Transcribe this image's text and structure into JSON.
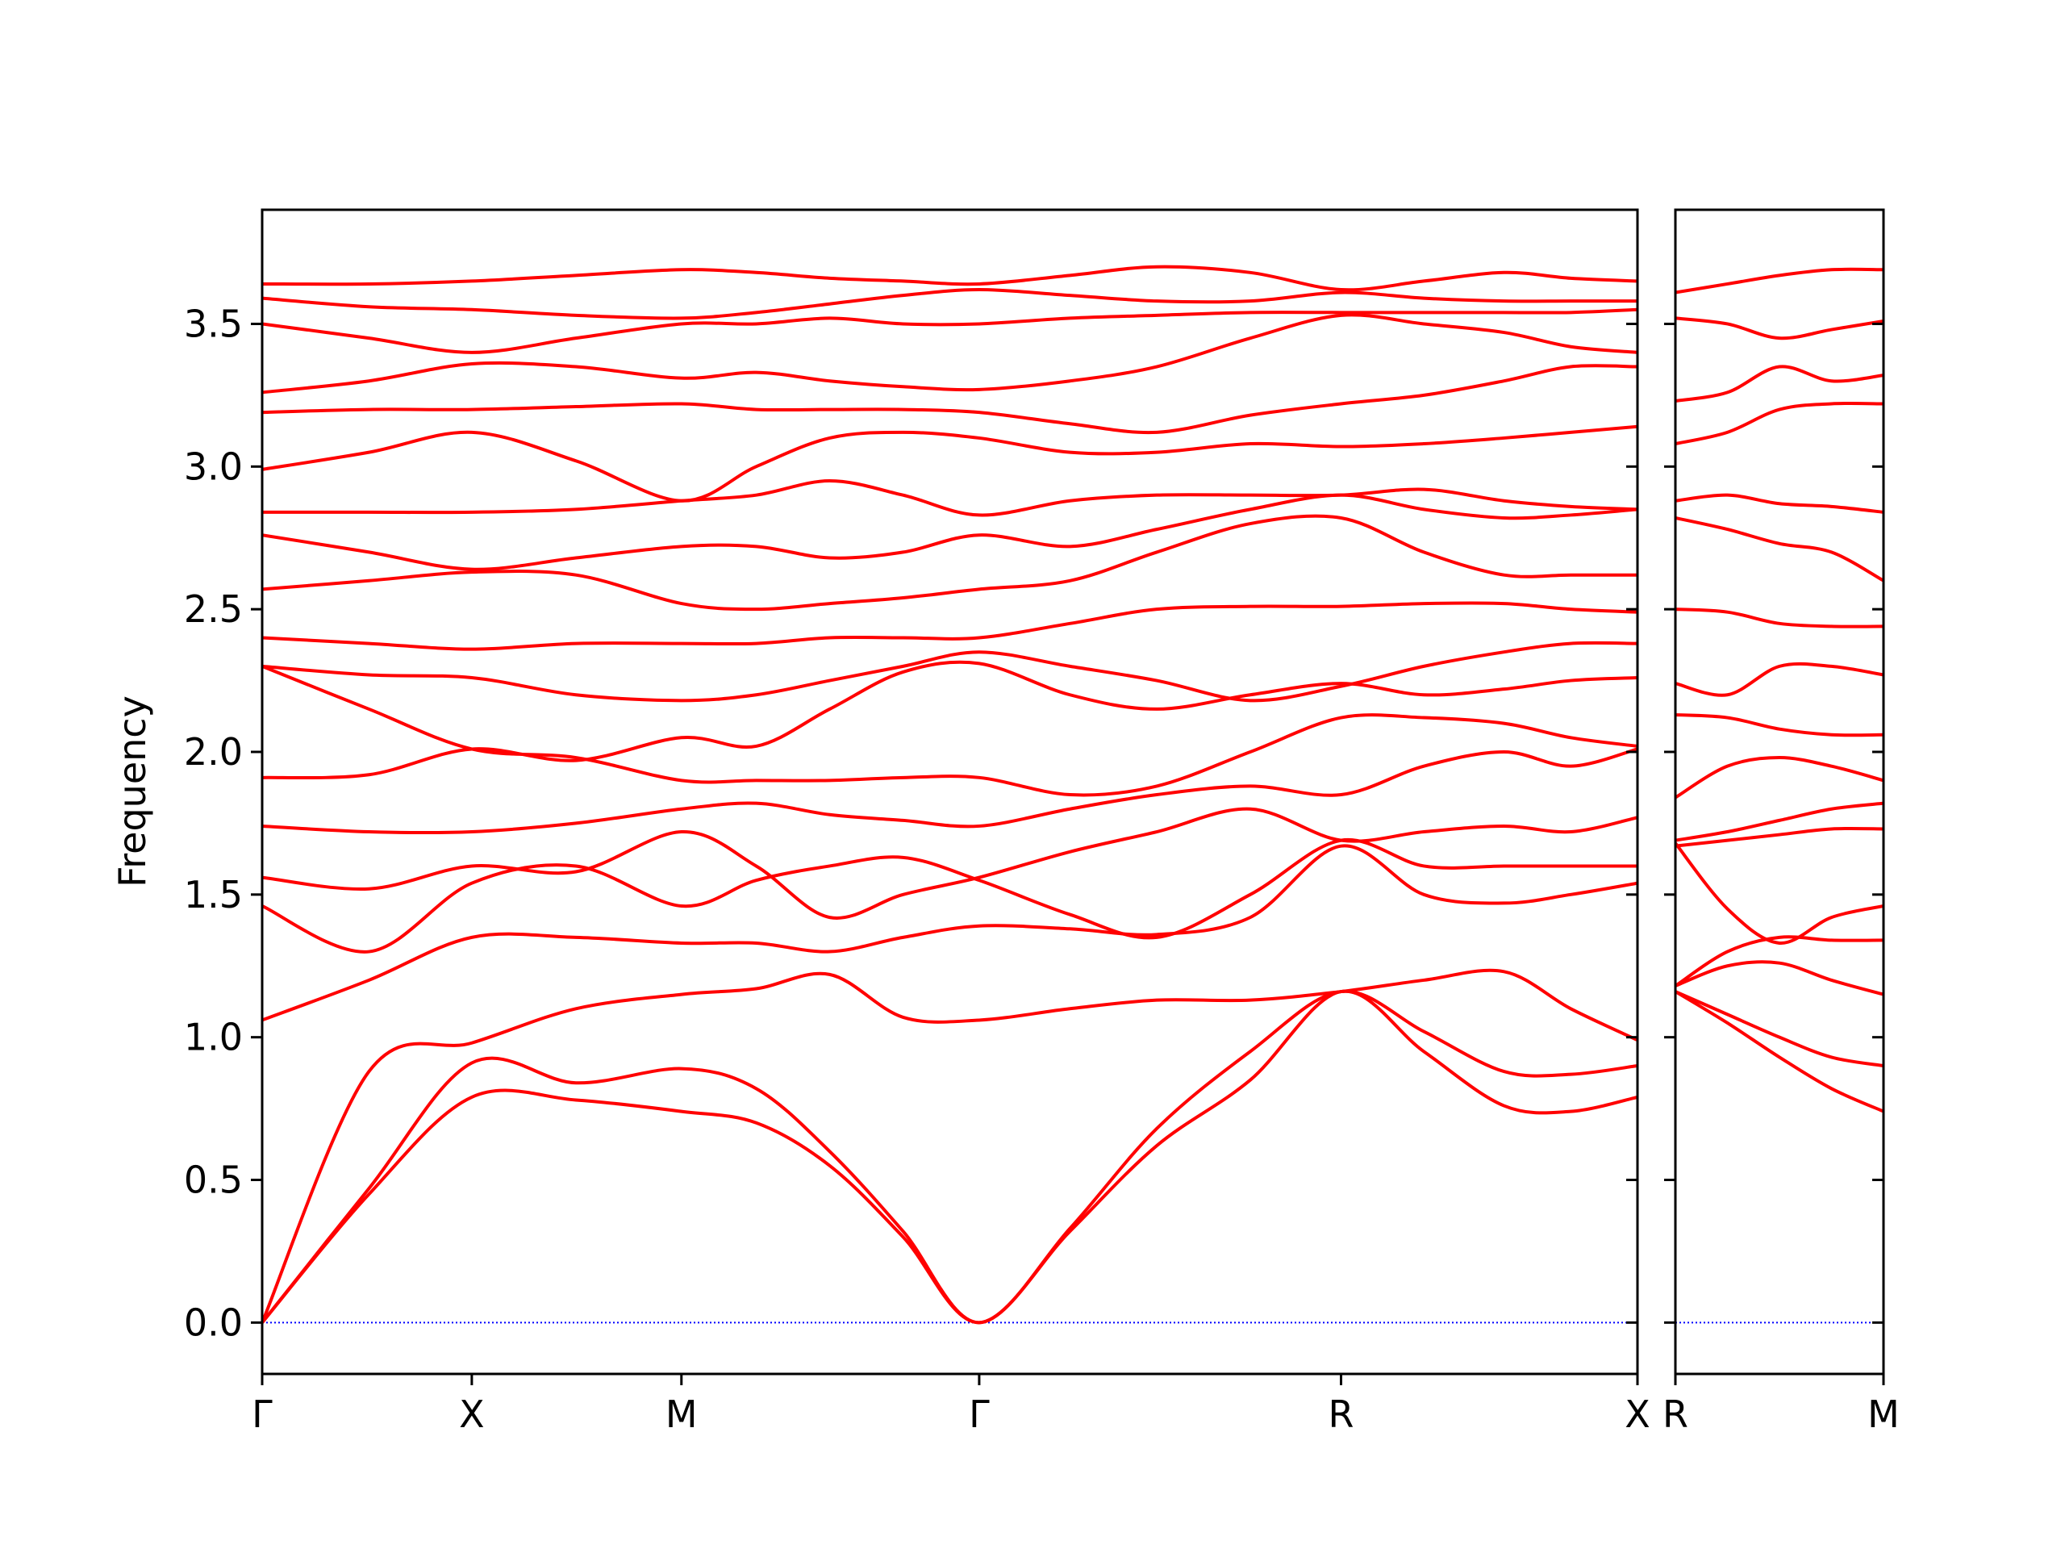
{
  "chart_data": [
    {
      "type": "line",
      "y_label": "Frequency",
      "color": "#ff0000",
      "xlim": [
        0,
        1.03
      ],
      "ylim": [
        -0.18,
        3.9
      ],
      "xticks": [
        {
          "value": 0,
          "label": "Γ"
        },
        {
          "value": 0.157,
          "label": "X"
        },
        {
          "value": 0.314,
          "label": "M"
        },
        {
          "value": 0.537,
          "label": "Γ"
        },
        {
          "value": 0.808,
          "label": "R"
        },
        {
          "value": 1.03,
          "label": "X"
        }
      ],
      "yticks": [
        {
          "value": 0,
          "label": "0.0"
        },
        0.5,
        {
          "value": 1,
          "label": "1.0"
        },
        1.5,
        {
          "value": 2,
          "label": "2.0"
        },
        2.5,
        {
          "value": 3,
          "label": "3.0"
        },
        3.5
      ],
      "reference_line": {
        "value": 0,
        "color": "#0000ff"
      },
      "x": [
        0,
        0.08,
        0.157,
        0.235,
        0.314,
        0.37,
        0.425,
        0.48,
        0.537,
        0.605,
        0.67,
        0.74,
        0.808,
        0.87,
        0.93,
        0.98,
        1.03
      ],
      "series": [
        {
          "values": [
            0,
            0.45,
            0.79,
            0.78,
            0.74,
            0.7,
            0.55,
            0.3,
            0,
            0.32,
            0.62,
            0.85,
            1.16,
            0.95,
            0.76,
            0.74,
            0.79
          ]
        },
        {
          "values": [
            0,
            0.47,
            0.91,
            0.84,
            0.89,
            0.82,
            0.6,
            0.32,
            0,
            0.33,
            0.68,
            0.95,
            1.16,
            1.02,
            0.88,
            0.87,
            0.9
          ]
        },
        {
          "values": [
            0,
            0.88,
            0.98,
            1.1,
            1.15,
            1.17,
            1.22,
            1.07,
            1.06,
            1.1,
            1.13,
            1.13,
            1.16,
            1.2,
            1.23,
            1.1,
            0.99
          ]
        },
        {
          "values": [
            1.06,
            1.2,
            1.35,
            1.35,
            1.33,
            1.33,
            1.3,
            1.35,
            1.39,
            1.38,
            1.36,
            1.42,
            1.67,
            1.5,
            1.47,
            1.5,
            1.54
          ]
        },
        {
          "values": [
            1.46,
            1.3,
            1.54,
            1.6,
            1.46,
            1.55,
            1.6,
            1.63,
            1.55,
            1.43,
            1.35,
            1.5,
            1.69,
            1.6,
            1.6,
            1.6,
            1.6
          ]
        },
        {
          "values": [
            1.56,
            1.52,
            1.6,
            1.58,
            1.72,
            1.6,
            1.42,
            1.5,
            1.56,
            1.65,
            1.72,
            1.8,
            1.69,
            1.72,
            1.74,
            1.72,
            1.77
          ]
        },
        {
          "values": [
            1.74,
            1.72,
            1.72,
            1.75,
            1.8,
            1.82,
            1.78,
            1.76,
            1.74,
            1.8,
            1.85,
            1.88,
            1.85,
            1.95,
            2.0,
            1.95,
            2.01
          ]
        },
        {
          "values": [
            1.91,
            1.92,
            2.01,
            1.97,
            2.05,
            2.02,
            2.15,
            2.28,
            2.31,
            2.2,
            2.15,
            2.2,
            2.24,
            2.2,
            2.22,
            2.25,
            2.26
          ]
        },
        {
          "values": [
            2.3,
            2.15,
            2.01,
            1.98,
            1.9,
            1.9,
            1.9,
            1.91,
            1.91,
            1.85,
            1.88,
            2.0,
            2.12,
            2.12,
            2.1,
            2.05,
            2.02
          ]
        },
        {
          "values": [
            2.3,
            2.27,
            2.26,
            2.2,
            2.18,
            2.2,
            2.25,
            2.3,
            2.35,
            2.3,
            2.25,
            2.18,
            2.23,
            2.3,
            2.35,
            2.38,
            2.38
          ]
        },
        {
          "values": [
            2.4,
            2.38,
            2.36,
            2.38,
            2.38,
            2.38,
            2.4,
            2.4,
            2.4,
            2.45,
            2.5,
            2.51,
            2.51,
            2.52,
            2.52,
            2.5,
            2.49
          ]
        },
        {
          "values": [
            2.57,
            2.6,
            2.63,
            2.62,
            2.52,
            2.5,
            2.52,
            2.54,
            2.57,
            2.6,
            2.7,
            2.8,
            2.82,
            2.7,
            2.62,
            2.62,
            2.62
          ]
        },
        {
          "values": [
            2.76,
            2.7,
            2.64,
            2.68,
            2.72,
            2.72,
            2.68,
            2.7,
            2.76,
            2.72,
            2.78,
            2.85,
            2.9,
            2.85,
            2.82,
            2.83,
            2.85
          ]
        },
        {
          "values": [
            2.84,
            2.84,
            2.84,
            2.85,
            2.88,
            2.9,
            2.95,
            2.9,
            2.83,
            2.88,
            2.9,
            2.9,
            2.9,
            2.92,
            2.88,
            2.86,
            2.85
          ]
        },
        {
          "values": [
            2.99,
            3.05,
            3.12,
            3.02,
            2.88,
            3.0,
            3.1,
            3.12,
            3.1,
            3.05,
            3.05,
            3.08,
            3.07,
            3.08,
            3.1,
            3.12,
            3.14
          ]
        },
        {
          "values": [
            3.19,
            3.2,
            3.2,
            3.21,
            3.22,
            3.2,
            3.2,
            3.2,
            3.19,
            3.15,
            3.12,
            3.18,
            3.22,
            3.25,
            3.3,
            3.35,
            3.35
          ]
        },
        {
          "values": [
            3.26,
            3.3,
            3.36,
            3.35,
            3.31,
            3.33,
            3.3,
            3.28,
            3.27,
            3.3,
            3.35,
            3.45,
            3.53,
            3.5,
            3.47,
            3.42,
            3.4
          ]
        },
        {
          "values": [
            3.5,
            3.45,
            3.4,
            3.45,
            3.5,
            3.5,
            3.52,
            3.5,
            3.5,
            3.52,
            3.53,
            3.54,
            3.54,
            3.54,
            3.54,
            3.54,
            3.55
          ]
        },
        {
          "values": [
            3.59,
            3.56,
            3.55,
            3.53,
            3.52,
            3.54,
            3.57,
            3.6,
            3.62,
            3.6,
            3.58,
            3.58,
            3.61,
            3.59,
            3.58,
            3.58,
            3.58
          ]
        },
        {
          "values": [
            3.64,
            3.64,
            3.65,
            3.67,
            3.69,
            3.68,
            3.66,
            3.65,
            3.64,
            3.67,
            3.7,
            3.68,
            3.62,
            3.65,
            3.68,
            3.66,
            3.65
          ]
        }
      ]
    },
    {
      "type": "line",
      "color": "#ff0000",
      "xlim": [
        0,
        1
      ],
      "ylim": [
        -0.18,
        3.9
      ],
      "xticks": [
        {
          "value": 0,
          "label": "R"
        },
        {
          "value": 1,
          "label": "M"
        }
      ],
      "reference_line": {
        "value": 0,
        "color": "#0000ff"
      },
      "x": [
        0,
        0.25,
        0.5,
        0.75,
        1
      ],
      "series": [
        {
          "values": [
            1.16,
            1.05,
            0.93,
            0.82,
            0.74
          ]
        },
        {
          "values": [
            1.16,
            1.08,
            1.0,
            0.93,
            0.9
          ]
        },
        {
          "values": [
            1.18,
            1.25,
            1.26,
            1.2,
            1.15
          ]
        },
        {
          "values": [
            1.18,
            1.3,
            1.35,
            1.34,
            1.34
          ]
        },
        {
          "values": [
            1.68,
            1.45,
            1.33,
            1.42,
            1.46
          ]
        },
        {
          "values": [
            1.67,
            1.69,
            1.71,
            1.73,
            1.73
          ]
        },
        {
          "values": [
            1.69,
            1.72,
            1.76,
            1.8,
            1.82
          ]
        },
        {
          "values": [
            1.84,
            1.95,
            1.98,
            1.95,
            1.9
          ]
        },
        {
          "values": [
            2.13,
            2.12,
            2.08,
            2.06,
            2.06
          ]
        },
        {
          "values": [
            2.24,
            2.2,
            2.3,
            2.3,
            2.27
          ]
        },
        {
          "values": [
            2.5,
            2.49,
            2.45,
            2.44,
            2.44
          ]
        },
        {
          "values": [
            2.82,
            2.78,
            2.73,
            2.7,
            2.6
          ]
        },
        {
          "values": [
            2.88,
            2.9,
            2.87,
            2.86,
            2.84
          ]
        },
        {
          "values": [
            3.08,
            3.12,
            3.2,
            3.22,
            3.22
          ]
        },
        {
          "values": [
            3.23,
            3.26,
            3.35,
            3.3,
            3.32
          ]
        },
        {
          "values": [
            3.52,
            3.5,
            3.45,
            3.48,
            3.51
          ]
        },
        {
          "values": [
            3.61,
            3.64,
            3.67,
            3.69,
            3.69
          ]
        }
      ]
    }
  ]
}
